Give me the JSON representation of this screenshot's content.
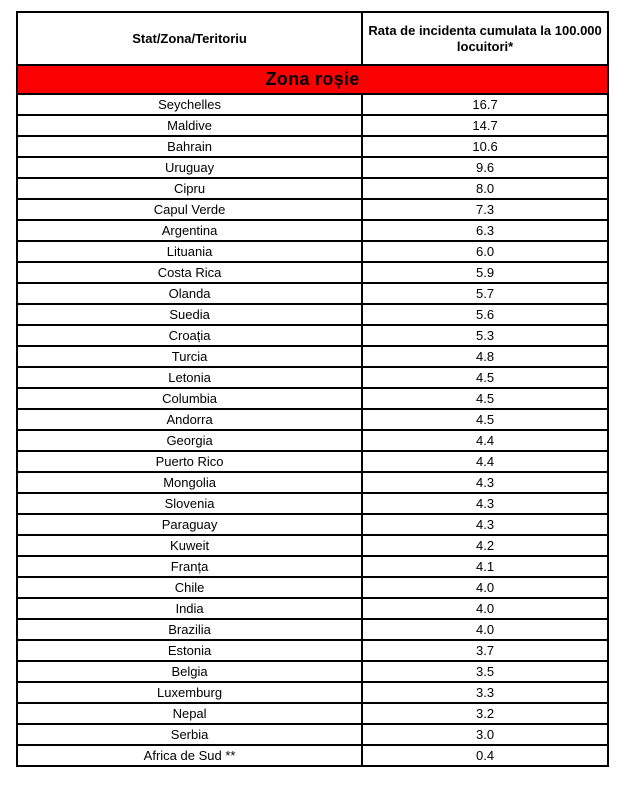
{
  "page": {
    "background": "#ffffff"
  },
  "table": {
    "border_color": "#000000",
    "header": {
      "col1": "Stat/Zona/Teritoriu",
      "col2": "Rata de incidenta cumulata la 100.000\nlocuitori*"
    },
    "banner": {
      "label": "Zona roșie",
      "background": "#fb0000",
      "text_color": "#000000"
    },
    "rows": [
      {
        "country": "Seychelles",
        "rate": "16.7"
      },
      {
        "country": "Maldive",
        "rate": "14.7"
      },
      {
        "country": "Bahrain",
        "rate": "10.6"
      },
      {
        "country": "Uruguay",
        "rate": "9.6"
      },
      {
        "country": "Cipru",
        "rate": "8.0"
      },
      {
        "country": "Capul Verde",
        "rate": "7.3"
      },
      {
        "country": "Argentina",
        "rate": "6.3"
      },
      {
        "country": "Lituania",
        "rate": "6.0"
      },
      {
        "country": "Costa Rica",
        "rate": "5.9"
      },
      {
        "country": "Olanda",
        "rate": "5.7"
      },
      {
        "country": "Suedia",
        "rate": "5.6"
      },
      {
        "country": "Croația",
        "rate": "5.3"
      },
      {
        "country": "Turcia",
        "rate": "4.8"
      },
      {
        "country": "Letonia",
        "rate": "4.5"
      },
      {
        "country": "Columbia",
        "rate": "4.5"
      },
      {
        "country": "Andorra",
        "rate": "4.5"
      },
      {
        "country": "Georgia",
        "rate": "4.4"
      },
      {
        "country": "Puerto Rico",
        "rate": "4.4"
      },
      {
        "country": "Mongolia",
        "rate": "4.3"
      },
      {
        "country": "Slovenia",
        "rate": "4.3"
      },
      {
        "country": "Paraguay",
        "rate": "4.3"
      },
      {
        "country": "Kuweit",
        "rate": "4.2"
      },
      {
        "country": "Franța",
        "rate": "4.1"
      },
      {
        "country": "Chile",
        "rate": "4.0"
      },
      {
        "country": "India",
        "rate": "4.0"
      },
      {
        "country": "Brazilia",
        "rate": "4.0"
      },
      {
        "country": "Estonia",
        "rate": "3.7"
      },
      {
        "country": "Belgia",
        "rate": "3.5"
      },
      {
        "country": "Luxemburg",
        "rate": "3.3"
      },
      {
        "country": "Nepal",
        "rate": "3.2"
      },
      {
        "country": "Serbia",
        "rate": "3.0"
      },
      {
        "country": "Africa de Sud **",
        "rate": "0.4"
      }
    ]
  }
}
